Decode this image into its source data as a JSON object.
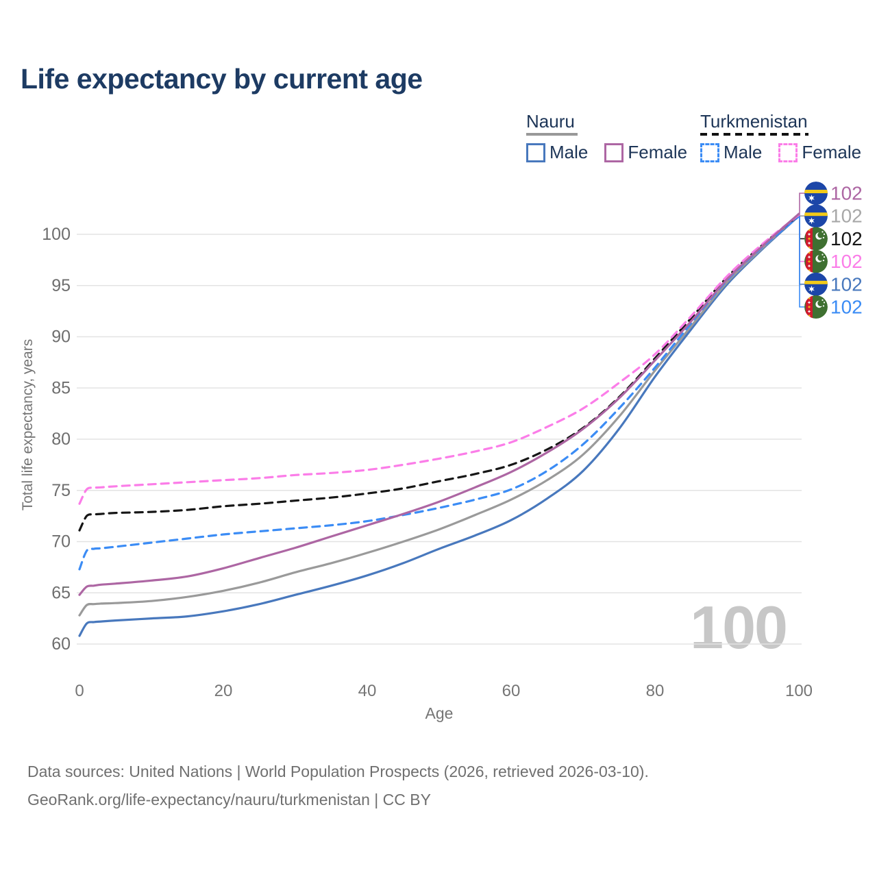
{
  "title": "Life expectancy by current age",
  "legend": {
    "groups": [
      {
        "name": "Nauru",
        "line_style": "solid",
        "underline_color": "#999999",
        "items": [
          {
            "label": "Male",
            "color": "#4878bd",
            "dashed": false
          },
          {
            "label": "Female",
            "color": "#ad66a3",
            "dashed": false
          }
        ]
      },
      {
        "name": "Turkmenistan",
        "line_style": "dashed",
        "underline_color": "#111111",
        "items": [
          {
            "label": "Male",
            "color": "#3b8cf5",
            "dashed": true
          },
          {
            "label": "Female",
            "color": "#fb7de8",
            "dashed": true
          }
        ]
      }
    ]
  },
  "chart_data": {
    "type": "line",
    "title": "Life expectancy by current age",
    "xlabel": "Age",
    "ylabel": "Total life expectancy, years",
    "xlim": [
      0,
      100
    ],
    "ylim": [
      60,
      100
    ],
    "x_ticks": [
      0,
      20,
      40,
      60,
      80,
      100
    ],
    "y_ticks": [
      60,
      65,
      70,
      75,
      80,
      85,
      90,
      95,
      100
    ],
    "grid": "horizontal",
    "legend_position": "top-right",
    "watermark": "100",
    "x": [
      0,
      1,
      2,
      3,
      5,
      10,
      15,
      20,
      25,
      30,
      35,
      40,
      45,
      50,
      55,
      60,
      65,
      70,
      75,
      80,
      85,
      90,
      95,
      100
    ],
    "series": [
      {
        "name": "Nauru Female",
        "country": "Nauru",
        "sex": "Female",
        "color": "#ad66a3",
        "label_color": "#ad66a3",
        "dashed": false,
        "end_label": "102",
        "values": [
          64.8,
          65.6,
          65.7,
          65.8,
          65.9,
          66.2,
          66.6,
          67.4,
          68.4,
          69.4,
          70.5,
          71.6,
          72.7,
          73.9,
          75.3,
          76.8,
          78.7,
          81.0,
          84.0,
          87.7,
          91.5,
          95.6,
          98.9,
          102.0
        ]
      },
      {
        "name": "Nauru Total",
        "country": "Nauru",
        "sex": "Total",
        "color": "#9a9a9a",
        "label_color": "#a8a8a8",
        "dashed": false,
        "end_label": "102",
        "values": [
          62.8,
          63.8,
          63.9,
          63.95,
          64.0,
          64.2,
          64.6,
          65.2,
          66.0,
          67.0,
          67.9,
          68.9,
          70.0,
          71.2,
          72.6,
          74.1,
          76.0,
          78.5,
          82.2,
          86.7,
          91.0,
          95.3,
          98.7,
          101.95
        ]
      },
      {
        "name": "Turkmenistan Total",
        "country": "Turkmenistan",
        "sex": "Total",
        "color": "#161616",
        "label_color": "#161616",
        "dashed": true,
        "end_label": "102",
        "values": [
          71.1,
          72.5,
          72.65,
          72.7,
          72.8,
          72.9,
          73.1,
          73.45,
          73.7,
          74.0,
          74.3,
          74.7,
          75.2,
          75.9,
          76.6,
          77.5,
          79.0,
          81.1,
          84.1,
          87.9,
          91.8,
          95.8,
          99.0,
          101.9
        ]
      },
      {
        "name": "Turkmenistan Female",
        "country": "Turkmenistan",
        "sex": "Female",
        "color": "#fb7de8",
        "label_color": "#fb7de8",
        "dashed": true,
        "end_label": "102",
        "values": [
          73.7,
          75.1,
          75.25,
          75.3,
          75.4,
          75.6,
          75.8,
          76.0,
          76.2,
          76.5,
          76.7,
          77.0,
          77.5,
          78.1,
          78.8,
          79.7,
          81.2,
          83.0,
          85.5,
          88.3,
          92.0,
          95.9,
          99.1,
          101.9
        ]
      },
      {
        "name": "Nauru Male",
        "country": "Nauru",
        "sex": "Male",
        "color": "#4878bd",
        "label_color": "#4878bd",
        "dashed": false,
        "end_label": "102",
        "values": [
          60.8,
          62.0,
          62.15,
          62.2,
          62.3,
          62.5,
          62.7,
          63.2,
          63.9,
          64.8,
          65.7,
          66.7,
          67.9,
          69.3,
          70.6,
          72.1,
          74.2,
          76.9,
          81.0,
          86.1,
          90.7,
          95.1,
          98.6,
          101.8
        ]
      },
      {
        "name": "Turkmenistan Male",
        "country": "Turkmenistan",
        "sex": "Male",
        "color": "#3b8cf5",
        "label_color": "#3b8cf5",
        "dashed": true,
        "end_label": "102",
        "values": [
          67.3,
          69.1,
          69.3,
          69.35,
          69.5,
          69.9,
          70.3,
          70.7,
          71.0,
          71.3,
          71.6,
          72.0,
          72.6,
          73.3,
          74.1,
          75.1,
          76.9,
          79.5,
          83.0,
          87.0,
          91.3,
          95.5,
          98.8,
          101.75
        ]
      }
    ]
  },
  "footer": {
    "line1": "Data sources: United Nations | World Population Prospects (2026, retrieved 2026-03-10).",
    "line2": "GeoRank.org/life-expectancy/nauru/turkmenistan | CC BY"
  }
}
